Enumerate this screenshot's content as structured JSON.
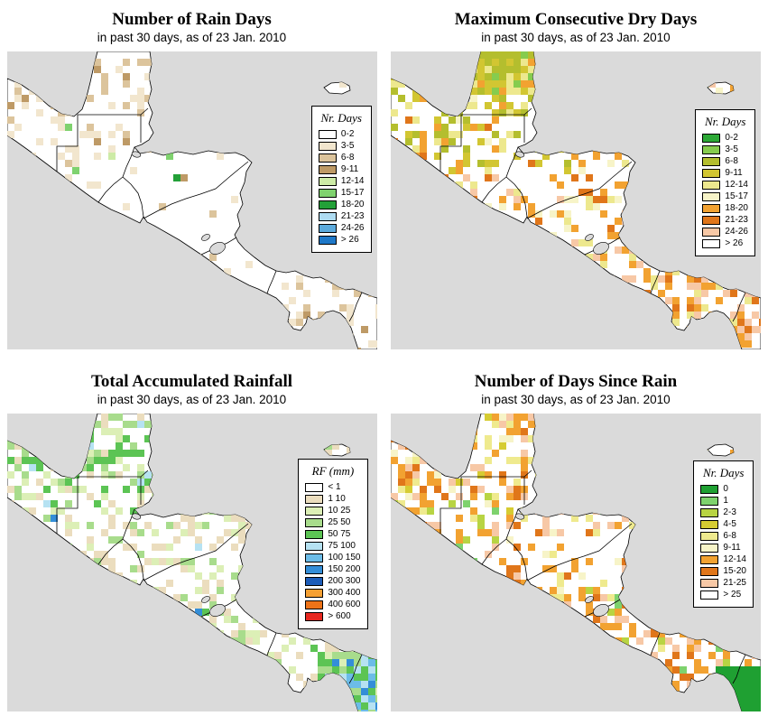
{
  "figure": {
    "ocean_color": "#DADADA",
    "land_color": "#FFFFFF",
    "border_color": "#000000"
  },
  "panels": [
    {
      "id": "rain-days",
      "title": "Number of Rain Days",
      "subtitle": "in past 30 days, as of  23 Jan. 2010",
      "legend_title": "Nr. Days",
      "legend": [
        {
          "label": "0-2",
          "color": "#FFFFFF"
        },
        {
          "label": "3-5",
          "color": "#F2E6CE"
        },
        {
          "label": "6-8",
          "color": "#DCC49C"
        },
        {
          "label": "9-11",
          "color": "#BE9A66"
        },
        {
          "label": "12-14",
          "color": "#CDEBA6"
        },
        {
          "label": "15-17",
          "color": "#7FD26E"
        },
        {
          "label": "18-20",
          "color": "#23A038"
        },
        {
          "label": "21-23",
          "color": "#AEDCF2"
        },
        {
          "label": "24-26",
          "color": "#5CAADC"
        },
        {
          "label": "> 26",
          "color": "#1E78C8"
        }
      ]
    },
    {
      "id": "dry-days",
      "title": "Maximum Consecutive Dry Days",
      "subtitle": "in past 30 days, as of  23 Jan. 2010",
      "legend_title": "Nr. Days",
      "legend": [
        {
          "label": "0-2",
          "color": "#2CA836"
        },
        {
          "label": "3-5",
          "color": "#86CC4E"
        },
        {
          "label": "6-8",
          "color": "#B4BE2E"
        },
        {
          "label": "9-11",
          "color": "#D2C632"
        },
        {
          "label": "12-14",
          "color": "#EDE88E"
        },
        {
          "label": "15-17",
          "color": "#F7F4C8"
        },
        {
          "label": "18-20",
          "color": "#F2A231"
        },
        {
          "label": "21-23",
          "color": "#E0761A"
        },
        {
          "label": "24-26",
          "color": "#F7C8A6"
        },
        {
          "label": "> 26",
          "color": "#FFFFFF"
        }
      ]
    },
    {
      "id": "rainfall",
      "title": "Total Accumulated Rainfall",
      "subtitle": "in past 30 days, as of  23 Jan. 2010",
      "legend_title": "RF (mm)",
      "legend": [
        {
          "label": "< 1",
          "color": "#FFFFFF"
        },
        {
          "label": "1 10",
          "color": "#EBDDBE"
        },
        {
          "label": "10 25",
          "color": "#DCEFB6"
        },
        {
          "label": "25 50",
          "color": "#A8DC8C"
        },
        {
          "label": "50 75",
          "color": "#5CC454"
        },
        {
          "label": "75 100",
          "color": "#B6E2F2"
        },
        {
          "label": "100 150",
          "color": "#6CBCE8"
        },
        {
          "label": "150 200",
          "color": "#348ED8"
        },
        {
          "label": "200 300",
          "color": "#1C5CB8"
        },
        {
          "label": "300 400",
          "color": "#F5A033"
        },
        {
          "label": "400 600",
          "color": "#EE7318"
        },
        {
          "label": "> 600",
          "color": "#E82820"
        }
      ]
    },
    {
      "id": "days-since-rain",
      "title": "Number of Days Since Rain",
      "subtitle": "in past 30 days, as of  23 Jan. 2010",
      "legend_title": "Nr. Days",
      "legend": [
        {
          "label": "0",
          "color": "#1FA032"
        },
        {
          "label": "1",
          "color": "#7ED26D"
        },
        {
          "label": "2-3",
          "color": "#B8D443"
        },
        {
          "label": "4-5",
          "color": "#D6CC32"
        },
        {
          "label": "6-8",
          "color": "#EFEA8E"
        },
        {
          "label": "9-11",
          "color": "#F7F4C8"
        },
        {
          "label": "12-14",
          "color": "#F2A231"
        },
        {
          "label": "15-20",
          "color": "#E0761A"
        },
        {
          "label": "21-25",
          "color": "#F7C8A6"
        },
        {
          "label": "> 25",
          "color": "#FFFFFF"
        }
      ]
    }
  ]
}
